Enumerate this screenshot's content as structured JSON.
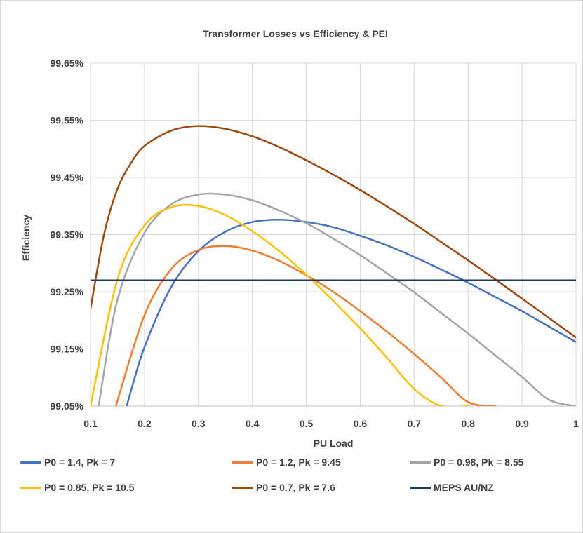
{
  "chart_data": {
    "type": "line",
    "title": "Transformer Losses vs Efficiency & PEI",
    "xlabel": "PU Load",
    "ylabel": "Efficiency",
    "xlim": [
      0.1,
      1
    ],
    "ylim": [
      99.05,
      99.65
    ],
    "x_ticks": [
      0.1,
      0.2,
      0.3,
      0.4,
      0.5,
      0.6,
      0.7,
      0.8,
      0.9,
      1
    ],
    "x_tick_labels": [
      "0.1",
      "0.2",
      "0.3",
      "0.4",
      "0.5",
      "0.6",
      "0.7",
      "0.8",
      "0.9",
      "1"
    ],
    "y_ticks": [
      99.05,
      99.15,
      99.25,
      99.35,
      99.45,
      99.55,
      99.65
    ],
    "y_tick_labels": [
      "99.05%",
      "99.15%",
      "99.25%",
      "99.35%",
      "99.45%",
      "99.55%",
      "99.65%"
    ],
    "grid": true,
    "legend_position": "bottom",
    "series": [
      {
        "name": "P0 = 1.4, Pk = 7",
        "color": "#4472c4",
        "x": [
          0.167,
          0.2,
          0.25,
          0.3,
          0.35,
          0.4,
          0.45,
          0.5,
          0.55,
          0.6,
          0.65,
          0.7,
          0.75,
          0.8,
          0.85,
          0.9,
          0.95,
          1.0
        ],
        "y": [
          99.05,
          99.153,
          99.259,
          99.321,
          99.355,
          99.372,
          99.376,
          99.372,
          99.363,
          99.348,
          99.331,
          99.311,
          99.289,
          99.266,
          99.241,
          99.216,
          99.189,
          99.162
        ]
      },
      {
        "name": "P0 = 1.2, Pk = 9.45",
        "color": "#ed7d31",
        "x": [
          0.147,
          0.2,
          0.25,
          0.3,
          0.35,
          0.4,
          0.45,
          0.5,
          0.55,
          0.6,
          0.65,
          0.7,
          0.75,
          0.8,
          0.85
        ],
        "y": [
          99.05,
          99.209,
          99.29,
          99.323,
          99.33,
          99.322,
          99.304,
          99.279,
          99.25,
          99.216,
          99.18,
          99.141,
          99.1,
          99.057,
          99.05
        ]
      },
      {
        "name": "P0 = 0.98, Pk = 8.55",
        "color": "#a5a5a5",
        "x": [
          0.115,
          0.15,
          0.2,
          0.25,
          0.3,
          0.35,
          0.4,
          0.45,
          0.5,
          0.55,
          0.6,
          0.65,
          0.7,
          0.75,
          0.8,
          0.85,
          0.9,
          0.95,
          1.0
        ],
        "y": [
          99.05,
          99.236,
          99.353,
          99.403,
          99.42,
          99.42,
          99.41,
          99.392,
          99.37,
          99.343,
          99.314,
          99.282,
          99.249,
          99.213,
          99.177,
          99.139,
          99.101,
          99.061,
          99.05
        ]
      },
      {
        "name": "P0 = 0.85, Pk = 10.5",
        "color": "#ffc000",
        "x": [
          0.1,
          0.15,
          0.2,
          0.25,
          0.3,
          0.35,
          0.4,
          0.45,
          0.5,
          0.55,
          0.6,
          0.65,
          0.7,
          0.75,
          0.8
        ],
        "y": [
          99.05,
          99.272,
          99.366,
          99.398,
          99.4,
          99.384,
          99.356,
          99.321,
          99.28,
          99.234,
          99.186,
          99.134,
          99.08,
          99.05,
          99.05
        ]
      },
      {
        "name": "P0 = 0.7, Pk = 7.6",
        "color": "#9e480e",
        "x": [
          0.1,
          0.125,
          0.15,
          0.175,
          0.2,
          0.25,
          0.3,
          0.35,
          0.4,
          0.45,
          0.5,
          0.55,
          0.6,
          0.65,
          0.7,
          0.75,
          0.8,
          0.85,
          0.9,
          0.95,
          1.0
        ],
        "y": [
          99.22,
          99.35,
          99.43,
          99.475,
          99.505,
          99.532,
          99.54,
          99.535,
          99.522,
          99.503,
          99.48,
          99.455,
          99.428,
          99.399,
          99.369,
          99.337,
          99.305,
          99.272,
          99.238,
          99.204,
          99.17
        ]
      },
      {
        "name": "MEPS AU/NZ",
        "color": "#203864",
        "x": [
          0.1,
          1.0
        ],
        "y": [
          99.27,
          99.27
        ]
      }
    ]
  }
}
